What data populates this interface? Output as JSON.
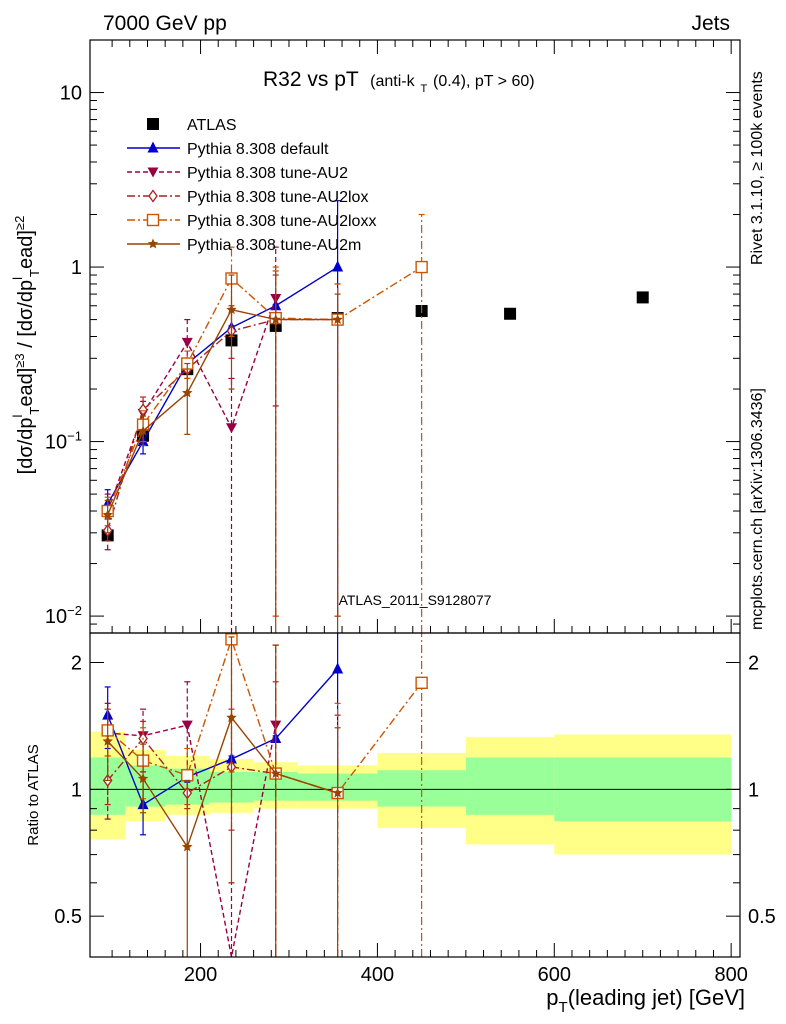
{
  "header": {
    "left": "7000 GeV pp",
    "right": "Jets"
  },
  "side_labels": {
    "rivet": "Rivet 3.1.10, ≥ 100k events",
    "mcplots": "mcplots.cern.ch [arXiv:1306.3436]"
  },
  "chart_data": [
    {
      "type": "scatter",
      "panel": "main",
      "title_main": "R32 vs pT",
      "title_sub": "(anti-k",
      "title_sub_index": "T",
      "title_sub_rest": "(0.4), pT > 60)",
      "watermark": "ATLAS_2011_S9128077",
      "ylabel": "[dσ/dp_T^lead]^≥3 / [dσ/dp_T^lead]^≥2",
      "yscale": "log",
      "ylim": [
        0.008,
        20
      ],
      "xlim": [
        75,
        810
      ],
      "ytick_labels": [
        "10^-2",
        "10^-1",
        "1",
        "10"
      ],
      "legend_position": "top-left",
      "series": [
        {
          "name": "ATLAS",
          "color": "#000000",
          "marker": "filled-square",
          "line": "none",
          "x": [
            95,
            135,
            185,
            235,
            285,
            355,
            450,
            550,
            700
          ],
          "y": [
            0.029,
            0.108,
            0.26,
            0.38,
            0.46,
            0.51,
            0.56,
            0.54,
            0.67
          ]
        },
        {
          "name": "Pythia 8.308 default",
          "color": "#0000cc",
          "marker": "filled-triangle-up",
          "line": "solid",
          "x": [
            95,
            135,
            185,
            235,
            285,
            355
          ],
          "y": [
            0.044,
            0.1,
            0.28,
            0.45,
            0.6,
            1.0
          ],
          "err_low": [
            0.036,
            0.085,
            0.27,
            0.44,
            0.59,
            0.01
          ],
          "err_high": [
            0.053,
            0.118,
            0.29,
            0.46,
            0.61,
            2.4
          ]
        },
        {
          "name": "Pythia 8.308 tune-AU2",
          "color": "#990044",
          "marker": "filled-triangle-down",
          "line": "dashed",
          "x": [
            95,
            135,
            185,
            235,
            285
          ],
          "y": [
            0.04,
            0.145,
            0.37,
            0.12,
            0.66
          ],
          "err_low": [
            0.024,
            0.12,
            0.25,
            0.001,
            0.16
          ],
          "err_high": [
            0.05,
            0.17,
            0.5,
            0.23,
            1.3
          ]
        },
        {
          "name": "Pythia 8.308 tune-AU2lox",
          "color": "#aa2222",
          "marker": "open-diamond",
          "line": "dash-dot",
          "x": [
            95,
            135,
            185,
            235,
            285,
            355
          ],
          "y": [
            0.031,
            0.152,
            0.26,
            0.43,
            0.5,
            0.5
          ],
          "err_low": [
            0.027,
            0.13,
            0.23,
            0.3,
            0.01,
            0.01
          ],
          "err_high": [
            0.036,
            0.18,
            0.3,
            0.6,
            0.9,
            0.8
          ]
        },
        {
          "name": "Pythia 8.308 tune-AU2loxx",
          "color": "#cc5500",
          "marker": "open-square",
          "line": "dash-dot",
          "x": [
            95,
            135,
            185,
            235,
            285,
            355,
            450
          ],
          "y": [
            0.04,
            0.125,
            0.28,
            0.86,
            0.51,
            0.5,
            1.0
          ],
          "err_low": [
            0.033,
            0.1,
            0.23,
            0.4,
            0.01,
            0.01,
            0.001
          ],
          "err_high": [
            0.048,
            0.15,
            0.33,
            1.3,
            1.0,
            0.8,
            2.0
          ]
        },
        {
          "name": "Pythia 8.308 tune-AU2m",
          "color": "#994400",
          "marker": "filled-star",
          "line": "solid",
          "x": [
            95,
            135,
            185,
            235,
            285,
            355
          ],
          "y": [
            0.038,
            0.115,
            0.19,
            0.57,
            0.5,
            0.5
          ],
          "err_low": [
            0.03,
            0.095,
            0.11,
            0.2,
            0.001,
            0.001
          ],
          "err_high": [
            0.046,
            0.14,
            0.28,
            0.9,
            0.95,
            0.7
          ]
        }
      ]
    },
    {
      "type": "line",
      "panel": "ratio",
      "ylabel": "Ratio to ATLAS",
      "xlabel": "p_T(leading jet) [GeV]",
      "xlabel_main": "p",
      "xlabel_sub": "T",
      "xlabel_rest": "(leading jet) [GeV]",
      "yscale": "log",
      "ylim": [
        0.4,
        2.35
      ],
      "xlim": [
        75,
        810
      ],
      "xticks": [
        200,
        400,
        600,
        800
      ],
      "yticks": [
        0.5,
        1,
        2
      ],
      "uncertainty_bands": [
        {
          "x0": 75,
          "x1": 115,
          "inner": [
            0.87,
            1.19
          ],
          "outer": [
            0.76,
            1.37
          ]
        },
        {
          "x0": 115,
          "x1": 160,
          "inner": [
            0.91,
            1.14
          ],
          "outer": [
            0.84,
            1.24
          ]
        },
        {
          "x0": 160,
          "x1": 210,
          "inner": [
            0.92,
            1.12
          ],
          "outer": [
            0.87,
            1.2
          ]
        },
        {
          "x0": 210,
          "x1": 260,
          "inner": [
            0.93,
            1.1
          ],
          "outer": [
            0.88,
            1.18
          ]
        },
        {
          "x0": 260,
          "x1": 310,
          "inner": [
            0.94,
            1.1
          ],
          "outer": [
            0.9,
            1.16
          ]
        },
        {
          "x0": 310,
          "x1": 400,
          "inner": [
            0.94,
            1.09
          ],
          "outer": [
            0.9,
            1.14
          ]
        },
        {
          "x0": 400,
          "x1": 500,
          "inner": [
            0.91,
            1.11
          ],
          "outer": [
            0.81,
            1.22
          ]
        },
        {
          "x0": 500,
          "x1": 600,
          "inner": [
            0.87,
            1.19
          ],
          "outer": [
            0.74,
            1.33
          ]
        },
        {
          "x0": 600,
          "x1": 800,
          "inner": [
            0.84,
            1.19
          ],
          "outer": [
            0.7,
            1.35
          ]
        }
      ],
      "band_colors": {
        "inner": "#99ff99",
        "outer": "#ffff88"
      },
      "series": [
        {
          "name": "Pythia 8.308 default",
          "color": "#0000cc",
          "marker": "filled-triangle-up",
          "line": "solid",
          "x": [
            95,
            135,
            185,
            235,
            285,
            355
          ],
          "y": [
            1.5,
            0.92,
            1.07,
            1.18,
            1.32,
            1.93
          ],
          "err_low": [
            1.25,
            0.78,
            1.04,
            1.16,
            1.3,
            1.0
          ],
          "err_high": [
            1.75,
            1.06,
            1.1,
            1.2,
            1.34,
            2.5
          ]
        },
        {
          "name": "Pythia 8.308 tune-AU2",
          "color": "#990044",
          "marker": "filled-triangle-down",
          "line": "dashed",
          "x": [
            95,
            135,
            185,
            235,
            285
          ],
          "y": [
            1.36,
            1.34,
            1.42,
            0.32,
            1.42
          ],
          "err_low": [
            0.85,
            1.1,
            1.0,
            0.2,
            0.35
          ],
          "err_high": [
            1.6,
            1.55,
            1.8,
            0.6,
            2.2
          ]
        },
        {
          "name": "Pythia 8.308 tune-AU2lox",
          "color": "#aa2222",
          "marker": "open-diamond",
          "line": "dash-dot",
          "x": [
            95,
            135,
            185,
            235,
            285,
            355
          ],
          "y": [
            1.05,
            1.32,
            0.98,
            1.13,
            1.09,
            0.98
          ],
          "err_low": [
            0.92,
            1.18,
            0.9,
            0.8,
            0.35,
            0.35
          ],
          "err_high": [
            1.2,
            1.45,
            1.08,
            1.55,
            1.8,
            1.5
          ]
        },
        {
          "name": "Pythia 8.308 tune-AU2loxx",
          "color": "#cc5500",
          "marker": "open-square",
          "line": "dash-dot",
          "x": [
            95,
            135,
            185,
            235,
            285,
            355,
            450
          ],
          "y": [
            1.38,
            1.17,
            1.08,
            2.27,
            1.09,
            0.98,
            1.79
          ],
          "err_low": [
            1.2,
            0.95,
            0.92,
            1.1,
            0.35,
            0.35,
            0.35
          ],
          "err_high": [
            1.55,
            1.4,
            1.25,
            2.5,
            2.2,
            1.6,
            3.5
          ]
        },
        {
          "name": "Pythia 8.308 tune-AU2m",
          "color": "#994400",
          "marker": "filled-star",
          "line": "solid",
          "x": [
            95,
            135,
            185,
            235,
            285,
            355
          ],
          "y": [
            1.3,
            1.06,
            0.73,
            1.48,
            1.09,
            0.98
          ],
          "err_low": [
            1.05,
            0.88,
            0.4,
            0.6,
            0.35,
            0.35
          ],
          "err_high": [
            1.55,
            1.28,
            1.05,
            2.3,
            2.2,
            1.4
          ]
        }
      ]
    }
  ]
}
